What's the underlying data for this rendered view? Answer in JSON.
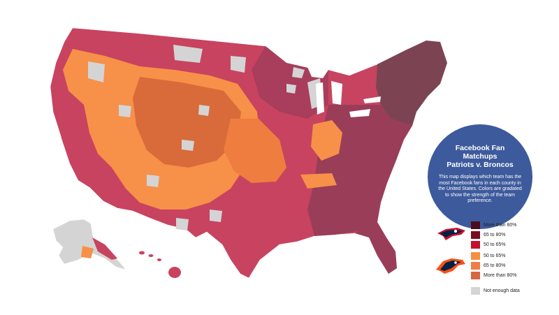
{
  "info": {
    "title": "Facebook Fan Matchups",
    "subtitle": "Patriots v. Broncos",
    "description": "This map displays which team has the most Facebook fans in each county in the United States. Colors are gradated to show the strength of the team preference."
  },
  "legend": {
    "patriots_logo_icon": "patriots-logo-icon",
    "broncos_logo_icon": "broncos-logo-icon",
    "items": [
      {
        "label": "More than 80%",
        "color": "#4a0d1c"
      },
      {
        "label": "65 to 80%",
        "color": "#7a0a1e"
      },
      {
        "label": "50 to 65%",
        "color": "#c4102e"
      },
      {
        "label": "50 to 65%",
        "color": "#f59042"
      },
      {
        "label": "65 to 80%",
        "color": "#ef7d48"
      },
      {
        "label": "More than 80%",
        "color": "#d8663f"
      },
      {
        "label": "Not enough data",
        "color": "#d4d4d4"
      }
    ]
  },
  "map_colors": {
    "patriots_strong": "#7c4452",
    "patriots_mid": "#9a3d58",
    "patriots_light": "#c8435f",
    "broncos_light": "#f79049",
    "broncos_mid": "#ef7d3f",
    "broncos_strong": "#d96b3a",
    "no_data": "#d4d4d4"
  }
}
